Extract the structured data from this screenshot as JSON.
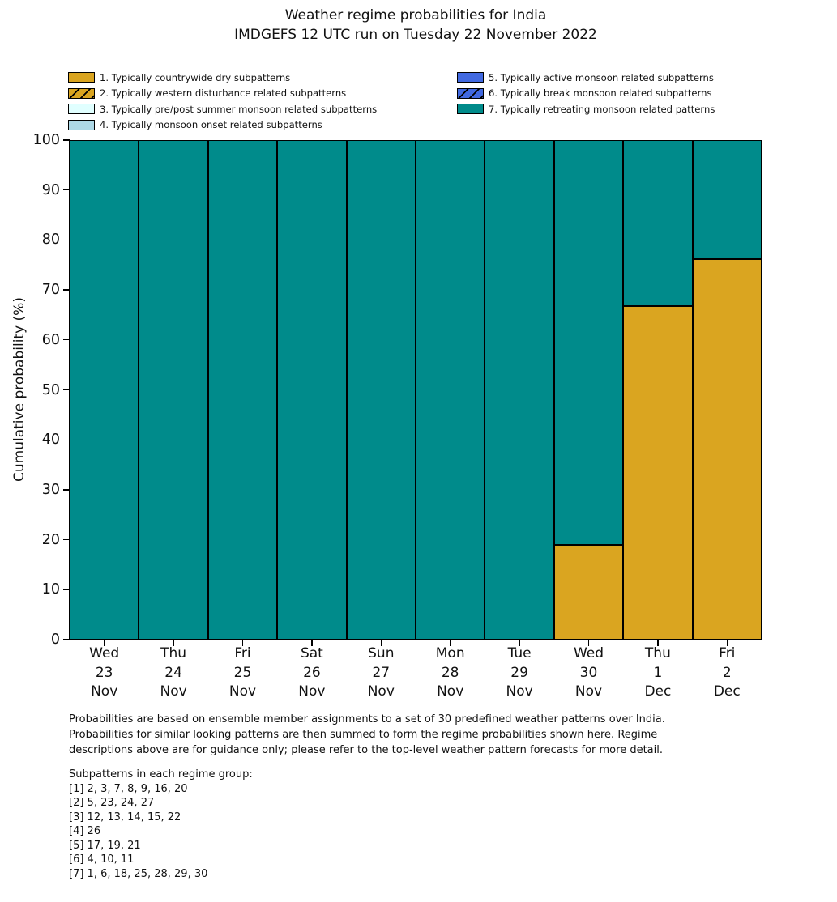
{
  "title": {
    "line1": "Weather regime probabilities for India",
    "line2": "IMDGEFS 12 UTC run on Tuesday 22 November 2022"
  },
  "legend": {
    "left_items": [
      {
        "label": "1. Typically countrywide dry subpatterns",
        "color": "#DAA520",
        "hatch": false
      },
      {
        "label": "2. Typically western disturbance related subpatterns",
        "color": "#DAA520",
        "hatch": true
      },
      {
        "label": "3. Typically pre/post summer monsoon related subpatterns",
        "color": "#E0FFFF",
        "hatch": false
      },
      {
        "label": "4. Typically monsoon onset related subpatterns",
        "color": "#ADD8E6",
        "hatch": false
      }
    ],
    "right_items": [
      {
        "label": "5. Typically active monsoon related subpatterns",
        "color": "#4169E1",
        "hatch": false
      },
      {
        "label": "6. Typically break monsoon related subpatterns",
        "color": "#4169E1",
        "hatch": true
      },
      {
        "label": "7. Typically retreating monsoon related patterns",
        "color": "#008B8B",
        "hatch": false
      }
    ]
  },
  "chart_data": {
    "type": "bar",
    "stacked": true,
    "title": "Weather regime probabilities for India — IMDGEFS 12 UTC run on Tuesday 22 November 2022",
    "xlabel": "",
    "ylabel": "Cumulative probability (%)",
    "ylim": [
      0,
      100
    ],
    "yticks": [
      0,
      10,
      20,
      30,
      40,
      50,
      60,
      70,
      80,
      90,
      100
    ],
    "grid": false,
    "legend_position": "top",
    "categories": [
      [
        "Wed",
        "23",
        "Nov"
      ],
      [
        "Thu",
        "24",
        "Nov"
      ],
      [
        "Fri",
        "25",
        "Nov"
      ],
      [
        "Sat",
        "26",
        "Nov"
      ],
      [
        "Sun",
        "27",
        "Nov"
      ],
      [
        "Mon",
        "28",
        "Nov"
      ],
      [
        "Tue",
        "29",
        "Nov"
      ],
      [
        "Wed",
        "30",
        "Nov"
      ],
      [
        "Thu",
        "1",
        "Dec"
      ],
      [
        "Fri",
        "2",
        "Dec"
      ]
    ],
    "series": [
      {
        "name": "1. Typically countrywide dry subpatterns",
        "color": "#DAA520",
        "values": [
          0,
          0,
          0,
          0,
          0,
          0,
          0,
          19.0,
          66.7,
          76.2
        ]
      },
      {
        "name": "2. Typically western disturbance related subpatterns",
        "color": "#DAA520",
        "hatch": true,
        "values": [
          0,
          0,
          0,
          0,
          0,
          0,
          0,
          0,
          0,
          0
        ]
      },
      {
        "name": "3. Typically pre/post summer monsoon related subpatterns",
        "color": "#E0FFFF",
        "values": [
          0,
          0,
          0,
          0,
          0,
          0,
          0,
          0,
          0,
          0
        ]
      },
      {
        "name": "4. Typically monsoon onset related subpatterns",
        "color": "#ADD8E6",
        "values": [
          0,
          0,
          0,
          0,
          0,
          0,
          0,
          0,
          0,
          0
        ]
      },
      {
        "name": "5. Typically active monsoon related subpatterns",
        "color": "#4169E1",
        "values": [
          0,
          0,
          0,
          0,
          0,
          0,
          0,
          0,
          0,
          0
        ]
      },
      {
        "name": "6. Typically break monsoon related subpatterns",
        "color": "#4169E1",
        "hatch": true,
        "values": [
          0,
          0,
          0,
          0,
          0,
          0,
          0,
          0,
          0,
          0
        ]
      },
      {
        "name": "7. Typically retreating monsoon related patterns",
        "color": "#008B8B",
        "values": [
          100,
          100,
          100,
          100,
          100,
          100,
          100,
          81.0,
          33.3,
          23.8
        ]
      }
    ]
  },
  "footer": {
    "paragraph_lines": [
      "Probabilities are based on ensemble member assignments to a set of 30 predefined weather patterns over India.",
      "Probabilities for similar looking patterns are then summed to form the regime probabilities shown here. Regime",
      "descriptions above are for guidance only; please refer to the top-level weather pattern forecasts for more detail."
    ],
    "subpatterns_header": "Subpatterns in each regime group:",
    "subpattern_lines": [
      "[1] 2, 3, 7, 8, 9, 16, 20",
      "[2] 5, 23, 24, 27",
      "[3] 12, 13, 14, 15, 22",
      "[4] 26",
      "[5] 17, 19, 21",
      "[6] 4, 10, 11",
      "[7] 1, 6, 18, 25, 28, 29, 30"
    ]
  }
}
